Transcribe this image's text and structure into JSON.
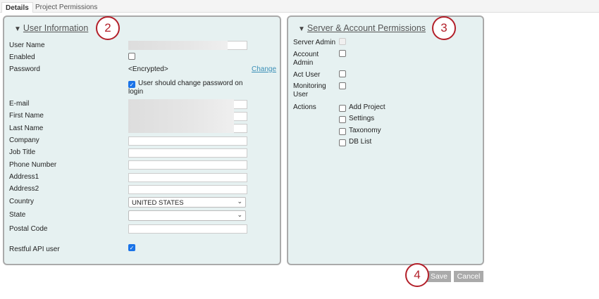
{
  "tabs": [
    {
      "label": "Details",
      "active": true
    },
    {
      "label": "Project Permissions",
      "active": false
    }
  ],
  "user_info": {
    "title": "User Information",
    "badge": "2",
    "fields": {
      "user_name": "User Name",
      "enabled": "Enabled",
      "password": "Password",
      "password_value": "<Encrypted>",
      "change_link": "Change",
      "change_password_label": "User should change password on login",
      "change_password_checked": true,
      "email": "E-mail",
      "first_name": "First Name",
      "last_name": "Last Name",
      "company": "Company",
      "job_title": "Job Title",
      "phone": "Phone Number",
      "address1": "Address1",
      "address2": "Address2",
      "country": "Country",
      "country_value": "UNITED STATES",
      "state": "State",
      "state_value": "",
      "postal": "Postal Code",
      "restful": "Restful API user",
      "restful_checked": true,
      "enabled_checked": false
    }
  },
  "permissions": {
    "title": "Server & Account Permissions",
    "badge": "3",
    "server_admin": "Server Admin",
    "account_admin": "Account Admin",
    "act_user": "Act User",
    "monitoring_user": "Monitoring User",
    "actions_label": "Actions",
    "actions": [
      "Add Project",
      "Settings",
      "Taxonomy",
      "DB List"
    ]
  },
  "footer": {
    "badge": "4",
    "save": "Save",
    "cancel": "Cancel"
  },
  "colors": {
    "panel_bg": "#e6f1f1",
    "badge": "#b3202a",
    "link": "#3a8fb7",
    "checkbox_on": "#1a73e8"
  }
}
